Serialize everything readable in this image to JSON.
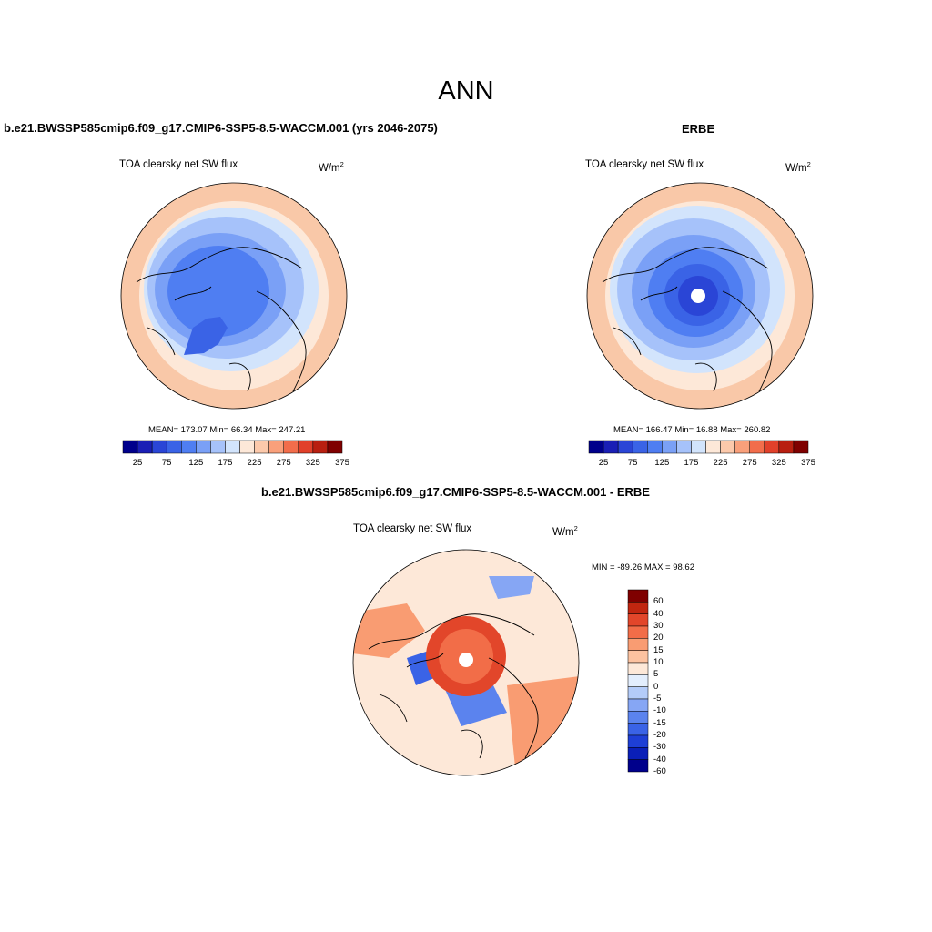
{
  "page_title": "ANN",
  "palettes": {
    "model": [
      "#00008b",
      "#1a1fb5",
      "#2a45d6",
      "#3a63e6",
      "#4f7ef2",
      "#7aa0f6",
      "#a6c2fa",
      "#d2e4fc",
      "#fde8d8",
      "#fcc9ab",
      "#f9a07b",
      "#f26d4b",
      "#e1402a",
      "#b81f10",
      "#7f0000"
    ],
    "diff": [
      "#00008b",
      "#0a1fb8",
      "#1e3fd6",
      "#3a63e6",
      "#5b83ee",
      "#86a6f4",
      "#b4ccf9",
      "#e3eefd",
      "#fde8d8",
      "#fcc2a0",
      "#f99c72",
      "#f26d48",
      "#e2462a",
      "#c12610",
      "#7f0000"
    ]
  },
  "panels": [
    {
      "header": "b.e21.BWSSP585cmip6.f09_g17.CMIP6-SSP5-8.5-WACCM.001 (yrs 2046-2075)",
      "label": "TOA clearsky net SW flux",
      "units": "W/m",
      "units_sup": "2",
      "stats": "MEAN= 173.07  Min=  66.34  Max= 247.21"
    },
    {
      "header": "ERBE",
      "label": "TOA clearsky net SW flux",
      "units": "W/m",
      "units_sup": "2",
      "stats": "MEAN= 166.47  Min=  16.88  Max= 260.82"
    },
    {
      "header": "b.e21.BWSSP585cmip6.f09_g17.CMIP6-SSP5-8.5-WACCM.001 - ERBE",
      "label": "TOA clearsky net SW flux",
      "units": "W/m",
      "units_sup": "2",
      "stats": "MIN = -89.26 MAX =  98.62"
    }
  ],
  "chart_data": [
    {
      "type": "heatmap",
      "projection": "north polar stereographic",
      "title": "TOA clearsky net SW flux",
      "units": "W/m2",
      "colorbar": {
        "orientation": "horizontal",
        "levels": [
          25,
          50,
          75,
          100,
          125,
          150,
          175,
          200,
          225,
          250,
          275,
          300,
          325,
          350
        ],
        "tick_labels": [
          "25",
          "75",
          "125",
          "175",
          "225",
          "275",
          "325",
          "375"
        ]
      },
      "mean": 173.07,
      "min": 66.34,
      "max": 247.21
    },
    {
      "type": "heatmap",
      "projection": "north polar stereographic",
      "title": "ERBE",
      "units": "W/m2",
      "colorbar": {
        "orientation": "horizontal",
        "levels": [
          25,
          50,
          75,
          100,
          125,
          150,
          175,
          200,
          225,
          250,
          275,
          300,
          325,
          350
        ],
        "tick_labels": [
          "25",
          "75",
          "125",
          "175",
          "225",
          "275",
          "325",
          "375"
        ]
      },
      "mean": 166.47,
      "min": 16.88,
      "max": 260.82
    },
    {
      "type": "heatmap",
      "projection": "north polar stereographic",
      "title": "b.e21.BWSSP585cmip6.f09_g17.CMIP6-SSP5-8.5-WACCM.001 - ERBE",
      "units": "W/m2",
      "colorbar": {
        "orientation": "vertical",
        "levels": [
          60,
          40,
          30,
          20,
          15,
          10,
          5,
          0,
          -5,
          -10,
          -15,
          -20,
          -30,
          -40,
          -60
        ],
        "tick_labels": [
          "60",
          "40",
          "30",
          "20",
          "15",
          "10",
          "5",
          "0",
          "-5",
          "-10",
          "-15",
          "-20",
          "-30",
          "-40",
          "-60"
        ]
      },
      "min": -89.26,
      "max": 98.62
    }
  ]
}
